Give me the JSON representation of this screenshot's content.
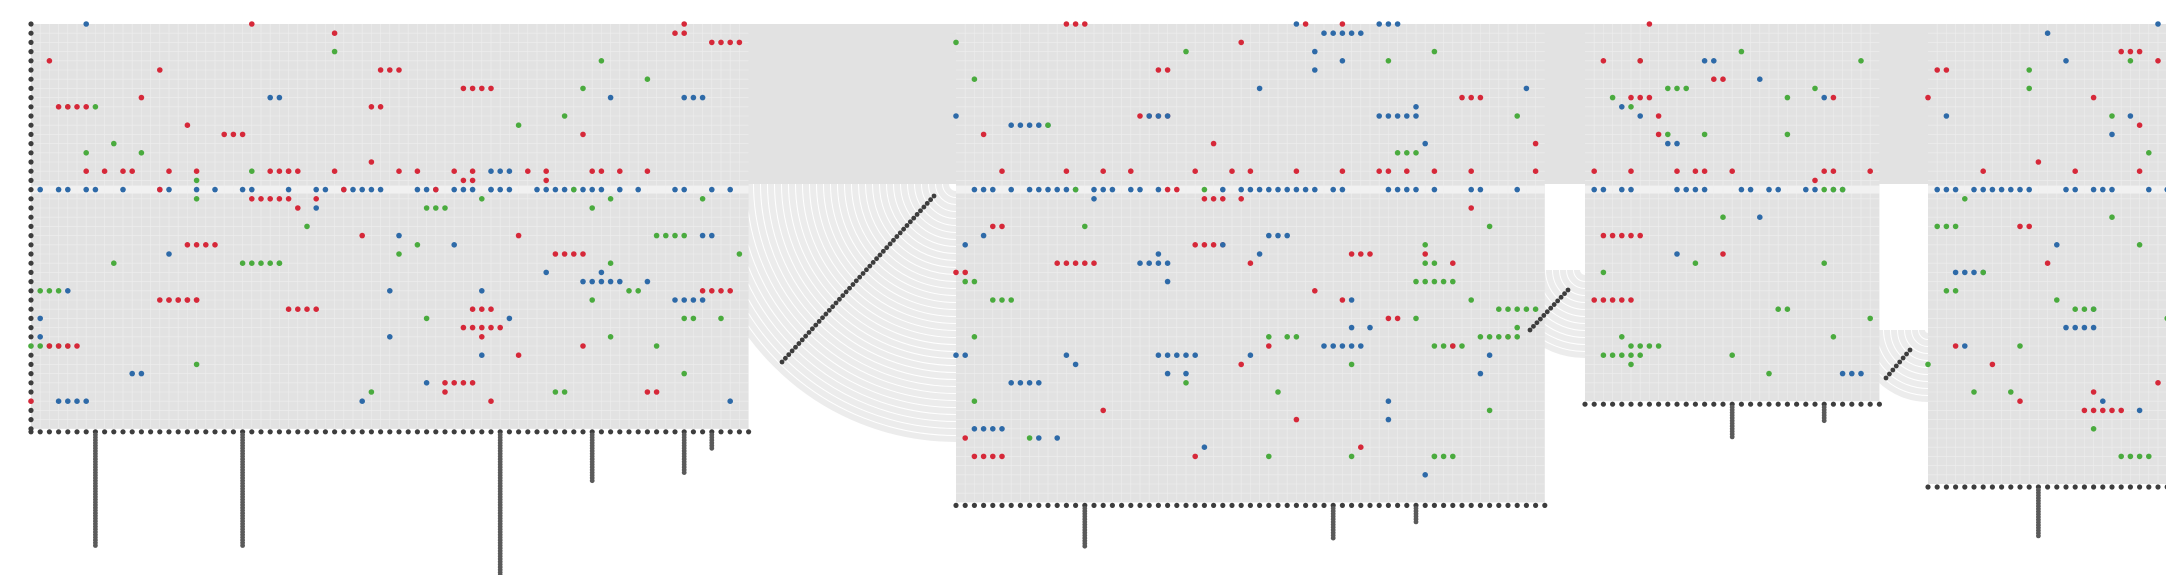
{
  "chart_data": {
    "type": "scatter",
    "title": "",
    "xlabel": "",
    "ylabel": "",
    "legend": "none",
    "grid": true,
    "colors": {
      "panel": "#e2e2e2",
      "gridline": "#eeeeee",
      "band": "#f1f1f1",
      "fan": "#ececec",
      "axis_dot": "#3d3d3d",
      "stem": "#5a5a5a",
      "series": [
        "#d62839",
        "#2e6aa8",
        "#4aab3e"
      ]
    },
    "panels": [
      {
        "id": "p1",
        "cols": 78,
        "rows": 44,
        "mid_row": 18,
        "stems": [
          [
            7,
            14
          ],
          [
            23,
            14
          ],
          [
            51,
            20
          ],
          [
            61,
            6
          ],
          [
            71,
            5
          ],
          [
            74,
            2
          ]
        ]
      },
      {
        "id": "p2",
        "cols": 64,
        "rows": 52,
        "mid_row": 18,
        "stems": [
          [
            14,
            5
          ],
          [
            41,
            4
          ],
          [
            50,
            2
          ]
        ]
      },
      {
        "id": "p3",
        "cols": 32,
        "rows": 41,
        "mid_row": 18,
        "stems": [
          [
            16,
            4
          ],
          [
            26,
            2
          ]
        ]
      },
      {
        "id": "p4",
        "cols": 29,
        "rows": 50,
        "mid_row": 18,
        "stems": [
          [
            12,
            6
          ]
        ]
      }
    ]
  }
}
